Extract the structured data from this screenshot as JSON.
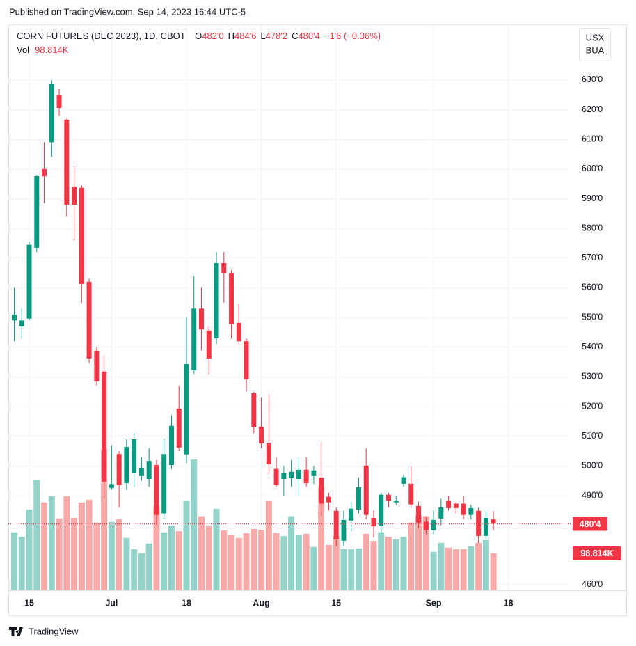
{
  "header": "Published on TradingView.com, Sep 14, 2023 16:44 UTC-5",
  "chart_data": {
    "type": "candlestick",
    "symbol": "CORN FUTURES (DEC 2023), 1D, CBOT",
    "ohlc_legend": [
      {
        "prefix": "O",
        "value": "482'0"
      },
      {
        "prefix": "H",
        "value": "484'6"
      },
      {
        "prefix": "L",
        "value": "478'2"
      },
      {
        "prefix": "C",
        "value": "480'4"
      }
    ],
    "change": "−1'6 (−0.36%)",
    "volume_title": "Vol",
    "currency": [
      "USX",
      "BUA"
    ],
    "categories": [
      null,
      null,
      "15",
      null,
      null,
      null,
      null,
      null,
      null,
      null,
      null,
      null,
      null,
      "Jul",
      null,
      null,
      null,
      null,
      null,
      null,
      null,
      null,
      null,
      "18",
      null,
      null,
      null,
      null,
      null,
      null,
      null,
      null,
      null,
      "Aug",
      null,
      null,
      null,
      null,
      null,
      null,
      null,
      null,
      null,
      "15",
      null,
      null,
      null,
      null,
      null,
      null,
      null,
      null,
      null,
      null,
      null,
      null,
      "Sep",
      null,
      null,
      null,
      null,
      null,
      null,
      null,
      null,
      null,
      "18"
    ],
    "open": [
      549,
      547,
      549.6,
      573.5,
      600,
      609,
      625,
      616.6,
      594,
      593.7,
      562,
      538.8,
      531.8,
      492.6,
      504,
      494.2,
      497.5,
      496.6,
      495.6,
      500.3,
      484,
      500.3,
      519.3,
      503.9,
      532.2,
      553,
      545.6,
      543,
      568.3,
      565,
      548.2,
      542,
      524.5,
      513.2,
      507.6,
      499,
      495.6,
      495.9,
      495.6,
      498.7,
      496.6,
      496.1,
      489.6,
      484.9,
      474.8,
      481.6,
      485.3,
      500.1,
      482.5,
      479.7,
      490.3,
      487.7,
      494,
      494,
      486.5,
      481.2,
      478.3,
      482.3,
      488.2,
      487.3,
      487.3,
      483.5,
      484.9,
      476.4,
      482,
      null,
      null
    ],
    "high": [
      560,
      553,
      575.5,
      598,
      609,
      630,
      627,
      617,
      601,
      594.5,
      563,
      540,
      537,
      507,
      505,
      509,
      511,
      503,
      506,
      502,
      509,
      517,
      527,
      550,
      564,
      560,
      547,
      572,
      572,
      566,
      554.5,
      543,
      525,
      523,
      524,
      503,
      500,
      502,
      503,
      503,
      500,
      508,
      491,
      486,
      485,
      488,
      496,
      506,
      485,
      491,
      491,
      490,
      497,
      500,
      488,
      483,
      485,
      489,
      490,
      488,
      490,
      487,
      486,
      485,
      484.75,
      null,
      null
    ],
    "low": [
      542,
      543,
      549,
      572,
      588.5,
      604,
      618,
      584,
      576,
      555,
      534.6,
      527,
      489,
      492,
      486,
      492,
      493,
      495,
      493,
      480,
      482,
      499,
      505,
      501,
      531,
      539,
      531,
      541,
      555,
      543,
      541,
      525,
      511,
      506,
      497,
      493,
      490,
      493,
      490,
      493,
      494,
      483,
      485,
      473,
      473,
      478,
      484,
      482,
      476,
      477,
      486,
      487,
      493,
      486,
      479,
      477,
      477,
      480,
      485,
      484,
      482,
      482,
      474,
      475,
      478.25,
      null,
      null
    ],
    "close": [
      551,
      549,
      574.5,
      597.6,
      597.6,
      628.8,
      620.6,
      588,
      588,
      561.3,
      536.2,
      528.5,
      494.7,
      493.9,
      493.6,
      506.4,
      509,
      499.4,
      501.7,
      483.5,
      504,
      513.5,
      506.2,
      534.3,
      553,
      546,
      536.2,
      568.3,
      565,
      547.7,
      542,
      529.2,
      513.2,
      507.6,
      500.6,
      493.6,
      497.5,
      498,
      498.7,
      494.2,
      498.5,
      487.3,
      487.7,
      475.3,
      481.8,
      485.6,
      492.8,
      483.5,
      479.7,
      490.3,
      488.2,
      488.2,
      496.2,
      487,
      480.9,
      478.5,
      481.8,
      486,
      485.8,
      485.8,
      483.5,
      485.8,
      476.4,
      482.5,
      480.5,
      null,
      null
    ],
    "volume": {
      "values": [
        155000,
        143000,
        216000,
        295000,
        235000,
        252000,
        192000,
        252000,
        194000,
        235000,
        242000,
        181000,
        378000,
        183000,
        190000,
        140000,
        110000,
        99000,
        125000,
        226000,
        155000,
        173000,
        158000,
        239000,
        350000,
        198000,
        171000,
        218000,
        160000,
        149000,
        140000,
        153000,
        164000,
        162000,
        239000,
        153000,
        145000,
        198000,
        149000,
        151000,
        116000,
        276000,
        121000,
        145000,
        110000,
        110000,
        112000,
        151000,
        132000,
        155000,
        143000,
        136000,
        143000,
        181000,
        201000,
        198000,
        103000,
        127000,
        114000,
        110000,
        110000,
        118000,
        127000,
        134000,
        98814,
        null,
        null
      ],
      "last_label": "98.814K"
    },
    "last_price": {
      "value": 480.5,
      "label": "480'4"
    },
    "ylim": [
      458.1,
      648.5
    ],
    "yticks": [
      {
        "value": 460,
        "label": "460'0"
      },
      {
        "value": 490,
        "label": "490'0"
      },
      {
        "value": 500,
        "label": "500'0"
      },
      {
        "value": 510,
        "label": "510'0"
      },
      {
        "value": 520,
        "label": "520'0"
      },
      {
        "value": 530,
        "label": "530'0"
      },
      {
        "value": 540,
        "label": "540'0"
      },
      {
        "value": 550,
        "label": "550'0"
      },
      {
        "value": 560,
        "label": "560'0"
      },
      {
        "value": 570,
        "label": "570'0"
      },
      {
        "value": 580,
        "label": "580'0"
      },
      {
        "value": 590,
        "label": "590'0"
      },
      {
        "value": 600,
        "label": "600'0"
      },
      {
        "value": 610,
        "label": "610'0"
      },
      {
        "value": 620,
        "label": "620'0"
      },
      {
        "value": 630,
        "label": "630'0"
      }
    ],
    "grid": true,
    "up_color": "#089981",
    "down_color": "#f23645",
    "up_volume_color": "#92d2c8",
    "down_volume_color": "#f7a9a7"
  },
  "footer": "TradingView"
}
